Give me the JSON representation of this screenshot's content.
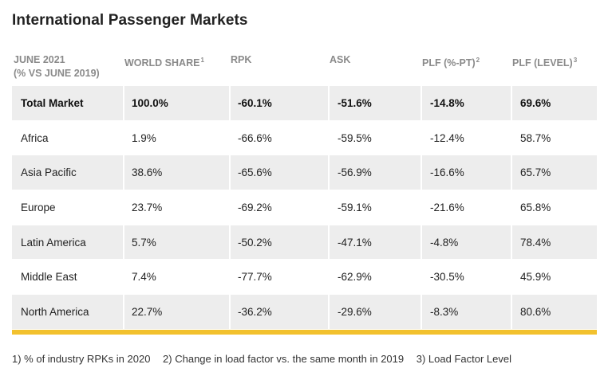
{
  "title": "International Passenger Markets",
  "table": {
    "headers": {
      "market_line1": "JUNE 2021",
      "market_line2": "(% VS JUNE 2019)",
      "world_share": "WORLD SHARE",
      "world_share_note": "1",
      "rpk": "RPK",
      "ask": "ASK",
      "plf_pt": "PLF (%-PT)",
      "plf_pt_note": "2",
      "plf_level": "PLF (LEVEL)",
      "plf_level_note": "3"
    },
    "rows": [
      {
        "market": "Total Market",
        "world_share": "100.0%",
        "rpk": "-60.1%",
        "ask": "-51.6%",
        "plf_pt": "-14.8%",
        "plf_level": "69.6%"
      },
      {
        "market": "Africa",
        "world_share": "1.9%",
        "rpk": "-66.6%",
        "ask": "-59.5%",
        "plf_pt": "-12.4%",
        "plf_level": "58.7%"
      },
      {
        "market": "Asia Pacific",
        "world_share": "38.6%",
        "rpk": "-65.6%",
        "ask": "-56.9%",
        "plf_pt": "-16.6%",
        "plf_level": "65.7%"
      },
      {
        "market": "Europe",
        "world_share": "23.7%",
        "rpk": "-69.2%",
        "ask": "-59.1%",
        "plf_pt": "-21.6%",
        "plf_level": "65.8%"
      },
      {
        "market": "Latin America",
        "world_share": "5.7%",
        "rpk": "-50.2%",
        "ask": "-47.1%",
        "plf_pt": "-4.8%",
        "plf_level": "78.4%"
      },
      {
        "market": "Middle East",
        "world_share": "7.4%",
        "rpk": "-77.7%",
        "ask": "-62.9%",
        "plf_pt": "-30.5%",
        "plf_level": "45.9%"
      },
      {
        "market": "North America",
        "world_share": "22.7%",
        "rpk": "-36.2%",
        "ask": "-29.6%",
        "plf_pt": "-8.3%",
        "plf_level": "80.6%"
      }
    ]
  },
  "footnotes": [
    "1) % of industry RPKs in 2020",
    "2) Change in load factor vs. the same month in 2019",
    "3) Load Factor Level"
  ],
  "colors": {
    "accent_bar": "#f2c12e",
    "row_shade": "#ededed",
    "header_text": "#8a8a8a"
  }
}
